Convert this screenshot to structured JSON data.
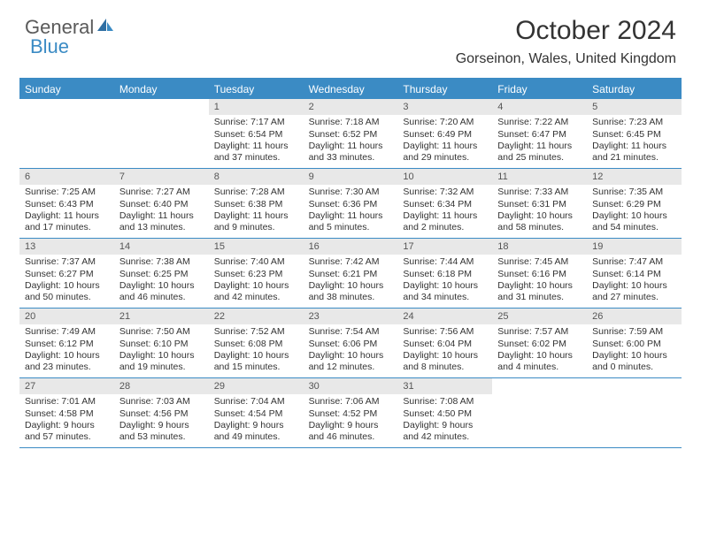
{
  "brand": {
    "part1": "General",
    "part2": "Blue"
  },
  "title": "October 2024",
  "location": "Gorseinon, Wales, United Kingdom",
  "colors": {
    "accent": "#3b8bc4",
    "header_bg": "#3b8bc4",
    "header_text": "#ffffff",
    "daynum_bg": "#e8e8e8",
    "divider": "#3b8bc4",
    "text": "#333333"
  },
  "day_names": [
    "Sunday",
    "Monday",
    "Tuesday",
    "Wednesday",
    "Thursday",
    "Friday",
    "Saturday"
  ],
  "weeks": [
    [
      {
        "n": "",
        "sr": "",
        "ss": "",
        "dl": ""
      },
      {
        "n": "",
        "sr": "",
        "ss": "",
        "dl": ""
      },
      {
        "n": "1",
        "sr": "Sunrise: 7:17 AM",
        "ss": "Sunset: 6:54 PM",
        "dl": "Daylight: 11 hours and 37 minutes."
      },
      {
        "n": "2",
        "sr": "Sunrise: 7:18 AM",
        "ss": "Sunset: 6:52 PM",
        "dl": "Daylight: 11 hours and 33 minutes."
      },
      {
        "n": "3",
        "sr": "Sunrise: 7:20 AM",
        "ss": "Sunset: 6:49 PM",
        "dl": "Daylight: 11 hours and 29 minutes."
      },
      {
        "n": "4",
        "sr": "Sunrise: 7:22 AM",
        "ss": "Sunset: 6:47 PM",
        "dl": "Daylight: 11 hours and 25 minutes."
      },
      {
        "n": "5",
        "sr": "Sunrise: 7:23 AM",
        "ss": "Sunset: 6:45 PM",
        "dl": "Daylight: 11 hours and 21 minutes."
      }
    ],
    [
      {
        "n": "6",
        "sr": "Sunrise: 7:25 AM",
        "ss": "Sunset: 6:43 PM",
        "dl": "Daylight: 11 hours and 17 minutes."
      },
      {
        "n": "7",
        "sr": "Sunrise: 7:27 AM",
        "ss": "Sunset: 6:40 PM",
        "dl": "Daylight: 11 hours and 13 minutes."
      },
      {
        "n": "8",
        "sr": "Sunrise: 7:28 AM",
        "ss": "Sunset: 6:38 PM",
        "dl": "Daylight: 11 hours and 9 minutes."
      },
      {
        "n": "9",
        "sr": "Sunrise: 7:30 AM",
        "ss": "Sunset: 6:36 PM",
        "dl": "Daylight: 11 hours and 5 minutes."
      },
      {
        "n": "10",
        "sr": "Sunrise: 7:32 AM",
        "ss": "Sunset: 6:34 PM",
        "dl": "Daylight: 11 hours and 2 minutes."
      },
      {
        "n": "11",
        "sr": "Sunrise: 7:33 AM",
        "ss": "Sunset: 6:31 PM",
        "dl": "Daylight: 10 hours and 58 minutes."
      },
      {
        "n": "12",
        "sr": "Sunrise: 7:35 AM",
        "ss": "Sunset: 6:29 PM",
        "dl": "Daylight: 10 hours and 54 minutes."
      }
    ],
    [
      {
        "n": "13",
        "sr": "Sunrise: 7:37 AM",
        "ss": "Sunset: 6:27 PM",
        "dl": "Daylight: 10 hours and 50 minutes."
      },
      {
        "n": "14",
        "sr": "Sunrise: 7:38 AM",
        "ss": "Sunset: 6:25 PM",
        "dl": "Daylight: 10 hours and 46 minutes."
      },
      {
        "n": "15",
        "sr": "Sunrise: 7:40 AM",
        "ss": "Sunset: 6:23 PM",
        "dl": "Daylight: 10 hours and 42 minutes."
      },
      {
        "n": "16",
        "sr": "Sunrise: 7:42 AM",
        "ss": "Sunset: 6:21 PM",
        "dl": "Daylight: 10 hours and 38 minutes."
      },
      {
        "n": "17",
        "sr": "Sunrise: 7:44 AM",
        "ss": "Sunset: 6:18 PM",
        "dl": "Daylight: 10 hours and 34 minutes."
      },
      {
        "n": "18",
        "sr": "Sunrise: 7:45 AM",
        "ss": "Sunset: 6:16 PM",
        "dl": "Daylight: 10 hours and 31 minutes."
      },
      {
        "n": "19",
        "sr": "Sunrise: 7:47 AM",
        "ss": "Sunset: 6:14 PM",
        "dl": "Daylight: 10 hours and 27 minutes."
      }
    ],
    [
      {
        "n": "20",
        "sr": "Sunrise: 7:49 AM",
        "ss": "Sunset: 6:12 PM",
        "dl": "Daylight: 10 hours and 23 minutes."
      },
      {
        "n": "21",
        "sr": "Sunrise: 7:50 AM",
        "ss": "Sunset: 6:10 PM",
        "dl": "Daylight: 10 hours and 19 minutes."
      },
      {
        "n": "22",
        "sr": "Sunrise: 7:52 AM",
        "ss": "Sunset: 6:08 PM",
        "dl": "Daylight: 10 hours and 15 minutes."
      },
      {
        "n": "23",
        "sr": "Sunrise: 7:54 AM",
        "ss": "Sunset: 6:06 PM",
        "dl": "Daylight: 10 hours and 12 minutes."
      },
      {
        "n": "24",
        "sr": "Sunrise: 7:56 AM",
        "ss": "Sunset: 6:04 PM",
        "dl": "Daylight: 10 hours and 8 minutes."
      },
      {
        "n": "25",
        "sr": "Sunrise: 7:57 AM",
        "ss": "Sunset: 6:02 PM",
        "dl": "Daylight: 10 hours and 4 minutes."
      },
      {
        "n": "26",
        "sr": "Sunrise: 7:59 AM",
        "ss": "Sunset: 6:00 PM",
        "dl": "Daylight: 10 hours and 0 minutes."
      }
    ],
    [
      {
        "n": "27",
        "sr": "Sunrise: 7:01 AM",
        "ss": "Sunset: 4:58 PM",
        "dl": "Daylight: 9 hours and 57 minutes."
      },
      {
        "n": "28",
        "sr": "Sunrise: 7:03 AM",
        "ss": "Sunset: 4:56 PM",
        "dl": "Daylight: 9 hours and 53 minutes."
      },
      {
        "n": "29",
        "sr": "Sunrise: 7:04 AM",
        "ss": "Sunset: 4:54 PM",
        "dl": "Daylight: 9 hours and 49 minutes."
      },
      {
        "n": "30",
        "sr": "Sunrise: 7:06 AM",
        "ss": "Sunset: 4:52 PM",
        "dl": "Daylight: 9 hours and 46 minutes."
      },
      {
        "n": "31",
        "sr": "Sunrise: 7:08 AM",
        "ss": "Sunset: 4:50 PM",
        "dl": "Daylight: 9 hours and 42 minutes."
      },
      {
        "n": "",
        "sr": "",
        "ss": "",
        "dl": ""
      },
      {
        "n": "",
        "sr": "",
        "ss": "",
        "dl": ""
      }
    ]
  ]
}
